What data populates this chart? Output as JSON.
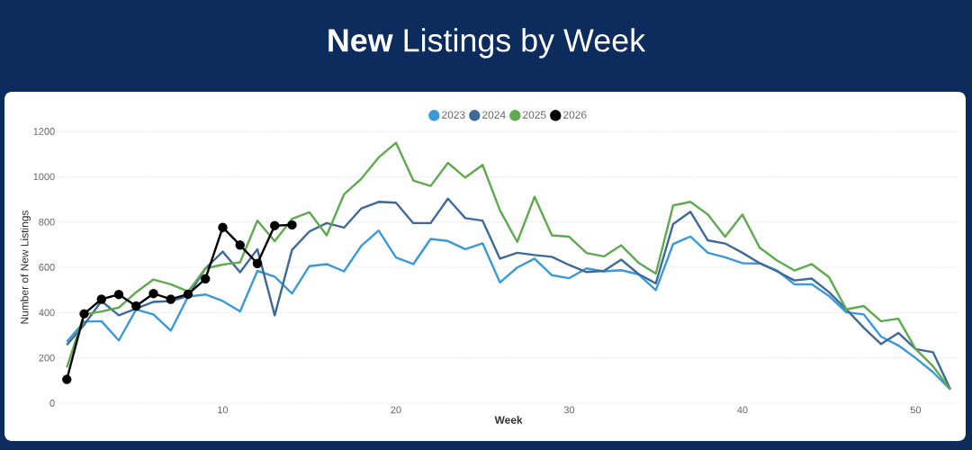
{
  "chart_data": {
    "type": "line",
    "title": "**New** Listings by Week",
    "xlabel": "Week",
    "ylabel": "Number of New Listings",
    "x": [
      1,
      2,
      3,
      4,
      5,
      6,
      7,
      8,
      9,
      10,
      11,
      12,
      13,
      14,
      15,
      16,
      17,
      18,
      19,
      20,
      21,
      22,
      23,
      24,
      25,
      26,
      27,
      28,
      29,
      30,
      31,
      32,
      33,
      34,
      35,
      36,
      37,
      38,
      39,
      40,
      41,
      42,
      43,
      44,
      45,
      46,
      47,
      48,
      49,
      50,
      51,
      52
    ],
    "series": [
      {
        "name": "2023",
        "color": "#3a9ad9",
        "marker": "none",
        "values": [
          271,
          360,
          362,
          277,
          414,
          392,
          320,
          471,
          480,
          451,
          405,
          584,
          559,
          484,
          605,
          614,
          582,
          695,
          762,
          643,
          614,
          725,
          716,
          680,
          706,
          533,
          599,
          638,
          565,
          552,
          595,
          582,
          587,
          569,
          499,
          703,
          736,
          664,
          644,
          618,
          617,
          586,
          525,
          525,
          473,
          401,
          392,
          294,
          255,
          199,
          137,
          61
        ]
      },
      {
        "name": "2024",
        "color": "#3f6a98",
        "marker": "none",
        "values": [
          257,
          346,
          451,
          388,
          418,
          447,
          451,
          473,
          595,
          669,
          578,
          680,
          388,
          677,
          758,
          795,
          775,
          860,
          889,
          885,
          795,
          795,
          903,
          817,
          806,
          638,
          664,
          654,
          646,
          610,
          579,
          584,
          634,
          570,
          529,
          791,
          845,
          719,
          705,
          664,
          618,
          582,
          542,
          550,
          490,
          414,
          333,
          261,
          310,
          239,
          225,
          61
        ]
      },
      {
        "name": "2025",
        "color": "#5faa4f",
        "marker": "none",
        "values": [
          157,
          392,
          405,
          422,
          490,
          546,
          525,
          493,
          595,
          612,
          622,
          806,
          715,
          814,
          843,
          741,
          922,
          991,
          1085,
          1150,
          983,
          959,
          1061,
          996,
          1052,
          852,
          712,
          911,
          741,
          735,
          663,
          648,
          697,
          620,
          572,
          873,
          889,
          833,
          735,
          833,
          686,
          630,
          586,
          614,
          556,
          414,
          429,
          362,
          373,
          239,
          163,
          61
        ]
      },
      {
        "name": "2026",
        "color": "#000000",
        "marker": "circle",
        "x": [
          1,
          2,
          3,
          4,
          5,
          6,
          7,
          8,
          9,
          10,
          11,
          12,
          13,
          14
        ],
        "values": [
          105,
          395,
          459,
          480,
          429,
          484,
          459,
          481,
          549,
          776,
          698,
          617,
          784,
          787
        ]
      }
    ],
    "xlim": [
      0.5,
      52.5
    ],
    "ylim": [
      0,
      1200
    ],
    "xticks": [
      10,
      20,
      30,
      40,
      50
    ],
    "yticks": [
      0,
      200,
      400,
      600,
      800,
      1000,
      1200
    ],
    "grid": "y",
    "legend": "top",
    "line_style": "solid"
  }
}
